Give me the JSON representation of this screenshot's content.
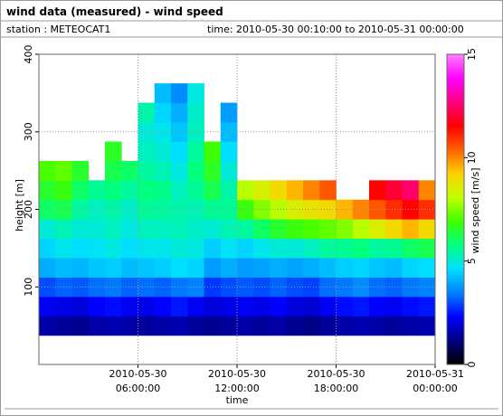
{
  "chart_data": {
    "type": "heatmap",
    "title": "wind data (measured) - wind speed",
    "station": "station : METEOCAT1",
    "time_range": "time: 2010-05-30 00:10:00 to 2010-05-31 00:00:00",
    "xlabel": "time",
    "ylabel": "height [m]",
    "zlabel": "wind speed [m/s]",
    "xlim": [
      0,
      24
    ],
    "xticks": [
      {
        "value": 6,
        "label": "2010-05-30\n06:00:00"
      },
      {
        "value": 12,
        "label": "2010-05-30\n12:00:00"
      },
      {
        "value": 18,
        "label": "2010-05-30\n18:00:00"
      },
      {
        "value": 24,
        "label": "2010-05-31\n00:00:00"
      }
    ],
    "ylim": [
      0,
      400
    ],
    "yticks": [
      100,
      200,
      300,
      400
    ],
    "zlim": [
      0,
      15
    ],
    "zticks": [
      0,
      5,
      10,
      15
    ],
    "grid": true,
    "colormap": [
      "#000000",
      "#000080",
      "#0000ff",
      "#0080ff",
      "#00e0ff",
      "#00ff80",
      "#40ff00",
      "#c0ff00",
      "#ffd000",
      "#ff6000",
      "#ff0000",
      "#ff0080",
      "#ff00ff",
      "#ff80ff"
    ],
    "x": [
      0.5,
      1.5,
      2.5,
      3.5,
      4.5,
      5.5,
      6.5,
      7.5,
      8.5,
      9.5,
      10.5,
      11.5,
      12.5,
      13.5,
      14.5,
      15.5,
      16.5,
      17.5,
      18.5,
      19.5,
      20.5,
      21.5,
      22.5,
      23.5
    ],
    "y": [
      50,
      75,
      100,
      125,
      150,
      175,
      200,
      225,
      250,
      275,
      300,
      325,
      350
    ],
    "z": [
      [
        1.5,
        2.2,
        3,
        4,
        4.5,
        5,
        6,
        6.5,
        7,
        null,
        null,
        null,
        null
      ],
      [
        1.4,
        2.1,
        3.2,
        4.2,
        4.8,
        5.3,
        6.2,
        6.8,
        7.2,
        null,
        null,
        null,
        null
      ],
      [
        1.3,
        2,
        3.1,
        4.1,
        4.6,
        5,
        5.5,
        6,
        6.5,
        null,
        null,
        null,
        null
      ],
      [
        1.5,
        2.3,
        3.3,
        4.3,
        4.7,
        5,
        5.2,
        5.6,
        null,
        null,
        null,
        null,
        null
      ],
      [
        1.6,
        2.4,
        3.4,
        4.4,
        4.9,
        5.2,
        5.4,
        5.8,
        6.2,
        6.6,
        null,
        null,
        null
      ],
      [
        1.5,
        2.2,
        3.2,
        4.2,
        4.6,
        4.9,
        5.1,
        5.5,
        6,
        null,
        null,
        null,
        null
      ],
      [
        1.4,
        2.1,
        3.3,
        4.3,
        4.8,
        5.2,
        5.6,
        5.8,
        5.5,
        5.2,
        5,
        5.4,
        null
      ],
      [
        1.5,
        2.3,
        3.2,
        4.4,
        4.8,
        5.2,
        5.5,
        5.7,
        5.3,
        5,
        4.8,
        4.5,
        4.2
      ],
      [
        1.6,
        2.5,
        3.4,
        4.6,
        5,
        5.3,
        5.4,
        5.2,
        4.9,
        4.6,
        4.3,
        4,
        3.6
      ],
      [
        1.4,
        2.2,
        3.5,
        4.5,
        4.9,
        5.1,
        5.3,
        5.6,
        5.8,
        5.5,
        5.2,
        5.1,
        4.9
      ],
      [
        1.3,
        2,
        2.8,
        3.8,
        4.4,
        5,
        5.6,
        6.2,
        6.6,
        6.9,
        null,
        null,
        null
      ],
      [
        1.4,
        2.1,
        3,
        4,
        4.7,
        5.3,
        5.6,
        5.4,
        5,
        4.6,
        4.2,
        3.8,
        null
      ],
      [
        1.5,
        2.2,
        3.1,
        3.8,
        4.5,
        5.5,
        6.8,
        8,
        null,
        null,
        null,
        null,
        null
      ],
      [
        1.4,
        2.1,
        3,
        3.9,
        4.8,
        6,
        7.5,
        8.5,
        null,
        null,
        null,
        null,
        null
      ],
      [
        1.5,
        2.3,
        3.2,
        4,
        5,
        6.5,
        8,
        9,
        null,
        null,
        null,
        null,
        null
      ],
      [
        1.3,
        2,
        3,
        3.9,
        5,
        6.8,
        8.5,
        9.5,
        null,
        null,
        null,
        null,
        null
      ],
      [
        1.2,
        1.9,
        2.9,
        4,
        5.2,
        7,
        8.8,
        10,
        null,
        null,
        null,
        null,
        null
      ],
      [
        1.4,
        2.2,
        3.3,
        4.2,
        5.5,
        7.2,
        9,
        10.5,
        null,
        null,
        null,
        null,
        null
      ],
      [
        1.5,
        2.4,
        3.4,
        4.4,
        5.6,
        7.5,
        9.5,
        null,
        null,
        null,
        null,
        null,
        null
      ],
      [
        1.6,
        2.5,
        3.6,
        4.5,
        5.8,
        8,
        10,
        null,
        null,
        null,
        null,
        null,
        null
      ],
      [
        1.5,
        2.3,
        3.3,
        4.3,
        5.5,
        8.5,
        10.5,
        11.5,
        null,
        null,
        null,
        null,
        null
      ],
      [
        1.4,
        2.2,
        3.2,
        4.2,
        5.6,
        9,
        11,
        12,
        null,
        null,
        null,
        null,
        null
      ],
      [
        1.5,
        2.4,
        3.4,
        4.5,
        6,
        9.5,
        11.5,
        12.5,
        null,
        null,
        null,
        null,
        null
      ],
      [
        1.6,
        2.5,
        3.5,
        4.6,
        6.2,
        9,
        11,
        10,
        null,
        null,
        null,
        null,
        null
      ]
    ]
  }
}
